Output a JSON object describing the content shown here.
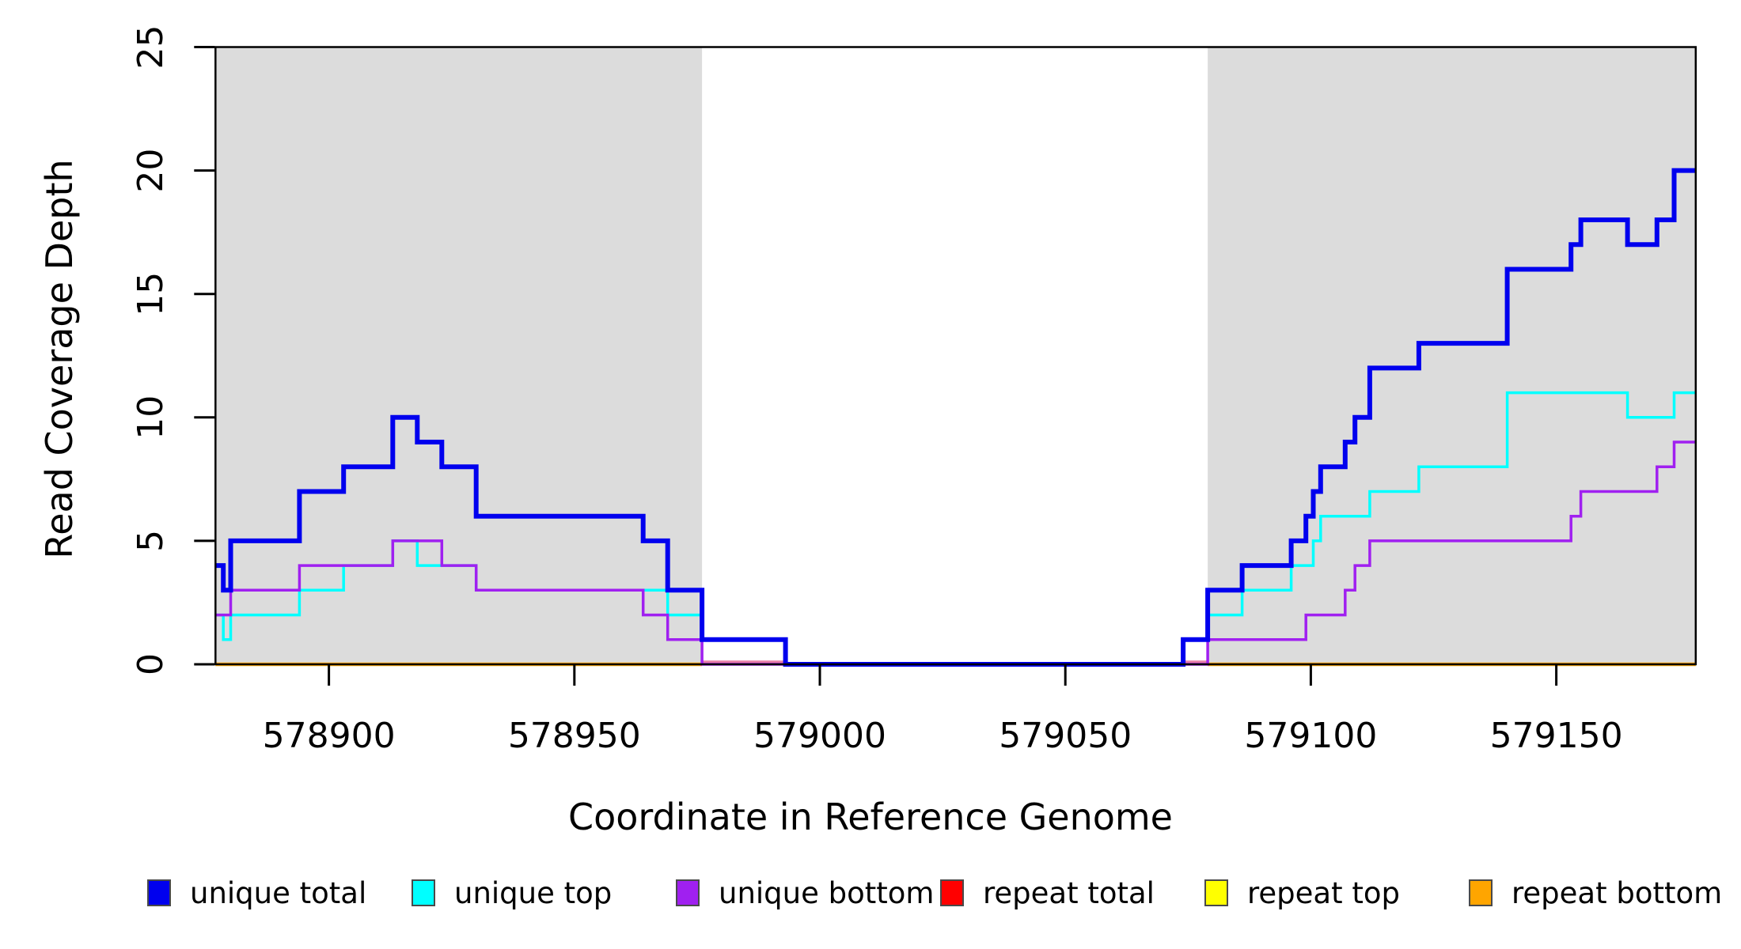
{
  "chart_data": {
    "type": "line",
    "subtype": "step-after-coverage",
    "title": "",
    "xlabel": "Coordinate in Reference Genome",
    "ylabel": "Read Coverage Depth",
    "xlim": [
      578876.9,
      579178.4
    ],
    "ylim": [
      0,
      25
    ],
    "x_ticks": [
      578900,
      578950,
      579000,
      579050,
      579100,
      579150
    ],
    "y_ticks": [
      0,
      5,
      10,
      15,
      20,
      25
    ],
    "grid": "off",
    "background_color": "#ffffff",
    "shaded_region_color": "#dcdcdc",
    "shaded_regions": [
      {
        "name": "repeat-region-left",
        "x0": 578876.9,
        "x1": 578976
      },
      {
        "name": "repeat-region-right",
        "x0": 579079,
        "x1": 579178.4
      }
    ],
    "series": [
      {
        "name": "repeat total",
        "color": "#e87fa8",
        "width": 3.5,
        "dy": -3,
        "note": "drawn at depth 0; visible as pink segments flanking the uncovered gap",
        "segments": [
          [
            [
              578976,
              0
            ],
            [
              578993,
              0
            ]
          ],
          [
            [
              579074,
              0
            ],
            [
              579079,
              0
            ]
          ]
        ]
      },
      {
        "name": "repeat top",
        "color": "#ffff00",
        "width": 3,
        "dy": 0,
        "note": "depth 0 across both repeat regions (hidden beneath repeat bottom)",
        "segments": [
          [
            [
              578876.9,
              0
            ],
            [
              578976,
              0
            ]
          ],
          [
            [
              579079,
              0
            ],
            [
              579178.4,
              0
            ]
          ]
        ]
      },
      {
        "name": "repeat bottom",
        "color": "#ffa500",
        "width": 4.5,
        "dy": 0,
        "note": "depth 0 across both repeat regions",
        "segments": [
          [
            [
              578876.9,
              0
            ],
            [
              578976,
              0
            ]
          ],
          [
            [
              579079,
              0
            ],
            [
              579178.4,
              0
            ]
          ]
        ]
      },
      {
        "name": "unique top",
        "color": "#00ffff",
        "width": 3.5,
        "dy": 0,
        "segments": [
          [
            [
              578876.9,
              2
            ],
            [
              578878.5,
              1
            ],
            [
              578880,
              2
            ],
            [
              578894,
              3
            ],
            [
              578903,
              4
            ],
            [
              578913,
              5
            ],
            [
              578918,
              4
            ],
            [
              578930,
              3
            ],
            [
              578969,
              2
            ],
            [
              578976,
              1
            ],
            [
              578993,
              0
            ],
            [
              579074,
              1
            ],
            [
              579079,
              2
            ],
            [
              579086,
              3
            ],
            [
              579096,
              4
            ],
            [
              579100.5,
              5
            ],
            [
              579102,
              6
            ],
            [
              579112,
              7
            ],
            [
              579122,
              8
            ],
            [
              579140,
              11
            ],
            [
              579164.5,
              10
            ],
            [
              579174,
              11
            ],
            [
              579178.4,
              11
            ]
          ]
        ]
      },
      {
        "name": "unique bottom",
        "color": "#a020f0",
        "width": 3.5,
        "dy": 0,
        "segments": [
          [
            [
              578876.9,
              2
            ],
            [
              578880,
              3
            ],
            [
              578894,
              4
            ],
            [
              578913,
              5
            ],
            [
              578923,
              4
            ],
            [
              578930,
              3
            ],
            [
              578964,
              2
            ],
            [
              578969,
              1
            ],
            [
              578976,
              0
            ],
            [
              579079,
              1
            ],
            [
              579099,
              2
            ],
            [
              579107,
              3
            ],
            [
              579109,
              4
            ],
            [
              579112,
              5
            ],
            [
              579153,
              6
            ],
            [
              579155,
              7
            ],
            [
              579170.5,
              8
            ],
            [
              579174,
              9
            ],
            [
              579178.4,
              9
            ]
          ]
        ]
      },
      {
        "name": "unique total",
        "color": "#0000ee",
        "width": 6,
        "dy": 0,
        "segments": [
          [
            [
              578876.9,
              4
            ],
            [
              578878.5,
              3
            ],
            [
              578880,
              5
            ],
            [
              578894,
              7
            ],
            [
              578903,
              8
            ],
            [
              578913,
              10
            ],
            [
              578918,
              9
            ],
            [
              578923,
              8
            ],
            [
              578930,
              6
            ],
            [
              578964,
              5
            ],
            [
              578969,
              3
            ],
            [
              578976,
              1
            ],
            [
              578993,
              0
            ],
            [
              579074,
              1
            ],
            [
              579079,
              3
            ],
            [
              579086,
              4
            ],
            [
              579096,
              5
            ],
            [
              579099,
              6
            ],
            [
              579100.5,
              7
            ],
            [
              579102,
              8
            ],
            [
              579107,
              9
            ],
            [
              579109,
              10
            ],
            [
              579112,
              12
            ],
            [
              579122,
              13
            ],
            [
              579140,
              16
            ],
            [
              579153,
              17
            ],
            [
              579155,
              18
            ],
            [
              579164.5,
              17
            ],
            [
              579170.5,
              18
            ],
            [
              579174,
              20
            ],
            [
              579178.4,
              20
            ]
          ]
        ]
      }
    ],
    "legend_position": "bottom",
    "legend": [
      {
        "label": "unique total",
        "color": "#0000ee"
      },
      {
        "label": "unique top",
        "color": "#00ffff"
      },
      {
        "label": "unique bottom",
        "color": "#a020f0"
      },
      {
        "label": "repeat total",
        "color": "#ff0000"
      },
      {
        "label": "repeat top",
        "color": "#ffff00"
      },
      {
        "label": "repeat bottom",
        "color": "#ffa500"
      }
    ],
    "axis_color": "#000000",
    "tick_label_color": "#000000",
    "y_tick_labels_rotated": true
  }
}
